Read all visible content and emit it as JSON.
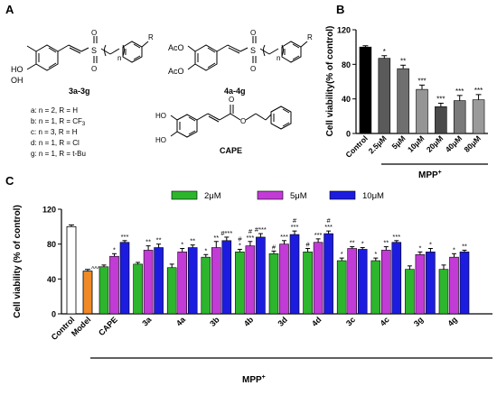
{
  "panel_labels": {
    "a": "A",
    "b": "B",
    "c": "C"
  },
  "structures": {
    "compound_1_label": "3a-3g",
    "compound_2_label": "4a-4g",
    "cape_label": "CAPE",
    "hydroxyl": "HO",
    "hydroxyl_2": "OH",
    "acetoxy": "AcO",
    "sulfonyl_s": "S",
    "oxygen": "O",
    "n_label": "n",
    "r_label": "R",
    "series_definitions": [
      "a: n = 2, R = H",
      "b: n = 1, R = CF",
      "c: n = 3, R = H",
      "d: n = 1, R = Cl",
      "g: n = 1, R = t-Bu"
    ],
    "cf3_subscript": "3"
  },
  "chart_data": [
    {
      "type": "bar",
      "panel": "B",
      "categories": [
        "Control",
        "2.5μM",
        "5μM",
        "10μM",
        "20μM",
        "40μM",
        "80μM"
      ],
      "values": [
        100,
        87,
        75,
        51,
        31,
        38,
        39
      ],
      "errors": [
        1.5,
        3,
        4,
        5,
        4,
        6,
        6
      ],
      "significance": [
        "",
        "*",
        "**",
        "***",
        "***",
        "***",
        "***"
      ],
      "colors": [
        "#000000",
        "#5a5a5a",
        "#6f6f6f",
        "#959595",
        "#4a4a4a",
        "#7a7a7a",
        "#9a9a9a"
      ],
      "xlabel": "MPP",
      "xlabel_sup": "+",
      "ylabel": "Cell viability(% of control)",
      "ylim": [
        0,
        120
      ],
      "yticks": [
        "0",
        "40",
        "80",
        "120"
      ]
    },
    {
      "type": "bar",
      "panel": "C",
      "categories": [
        "Control",
        "Model",
        "CAPE",
        "3a",
        "4a",
        "3b",
        "4b",
        "3d",
        "4d",
        "3c",
        "4c",
        "3g",
        "4g"
      ],
      "single": {
        "Control": 100,
        "Model": 49
      },
      "single_errors": {
        "Control": 2,
        "Model": 2
      },
      "single_colors": {
        "Control": "#ffffff",
        "Model": "#f08a28"
      },
      "model_marker": "^^^",
      "series": [
        {
          "name": "2μM",
          "color": "#2db52d",
          "values": [
            null,
            null,
            54,
            57,
            53,
            65,
            71,
            69,
            71,
            61,
            61,
            51,
            51
          ],
          "errors": [
            null,
            null,
            2,
            2,
            4,
            3,
            3,
            3,
            4,
            3,
            3,
            4,
            5
          ],
          "sig": [
            "",
            "",
            "",
            "",
            "",
            "*",
            "#\n*",
            "#",
            "#",
            "*",
            "*",
            "",
            ""
          ]
        },
        {
          "name": "5μM",
          "color": "#c23bd6",
          "values": [
            null,
            null,
            66,
            73,
            71,
            76,
            78,
            80,
            82,
            75,
            73,
            68,
            65
          ],
          "errors": [
            null,
            null,
            3,
            5,
            4,
            7,
            5,
            4,
            4,
            2,
            4,
            3,
            4
          ],
          "sig": [
            "",
            "",
            "*",
            "**",
            "*",
            "**",
            "#\n***",
            "***",
            "***",
            "**",
            "**",
            "*",
            "*"
          ]
        },
        {
          "name": "10μM",
          "color": "#1c1ce0",
          "values": [
            null,
            null,
            82,
            76,
            76,
            84,
            88,
            91,
            92,
            74,
            82,
            71,
            71
          ],
          "errors": [
            null,
            null,
            2,
            4,
            3,
            4,
            4,
            4,
            3,
            2,
            2,
            4,
            2
          ],
          "sig": [
            "",
            "",
            "***",
            "**",
            "**",
            "#***",
            "#***",
            "#\n***",
            "#\n***",
            "*",
            "***",
            "*",
            "**"
          ]
        }
      ],
      "xlabel": "MPP",
      "xlabel_sup": "+",
      "ylabel": "Cell viability (% of control)",
      "ylim": [
        0,
        120
      ],
      "yticks": [
        "0",
        "40",
        "80",
        "120"
      ],
      "legend_placement": "top"
    }
  ]
}
